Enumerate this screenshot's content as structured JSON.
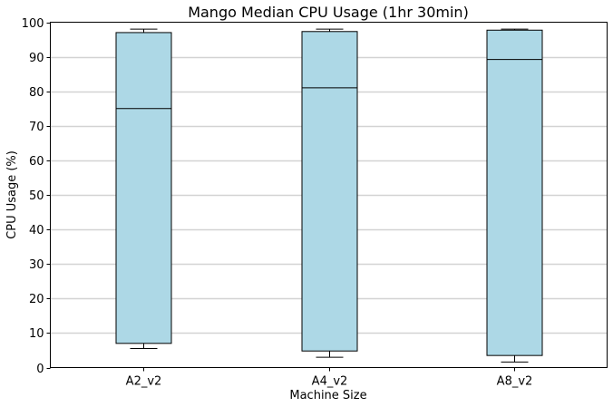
{
  "chart_data": {
    "type": "box",
    "title": "Mango Median CPU Usage (1hr 30min)",
    "xlabel": "Machine Size",
    "ylabel": "CPU Usage (%)",
    "ylim": [
      0,
      100
    ],
    "yticks": [
      0,
      10,
      20,
      30,
      40,
      50,
      60,
      70,
      80,
      90,
      100
    ],
    "grid": "horizontal",
    "categories": [
      "A2_v2",
      "A4_v2",
      "A8_v2"
    ],
    "boxes": [
      {
        "category": "A2_v2",
        "whisker_low": 5.5,
        "q1": 7.0,
        "median": 75.0,
        "q3": 97.0,
        "whisker_high": 98.0
      },
      {
        "category": "A4_v2",
        "whisker_low": 3.0,
        "q1": 4.8,
        "median": 81.0,
        "q3": 97.3,
        "whisker_high": 98.0
      },
      {
        "category": "A8_v2",
        "whisker_low": 1.6,
        "q1": 3.5,
        "median": 89.2,
        "q3": 97.7,
        "whisker_high": 98.0
      }
    ],
    "colors": {
      "box_fill": "#add8e6",
      "box_edge": "#000000",
      "grid": "#d3d3d3"
    }
  }
}
